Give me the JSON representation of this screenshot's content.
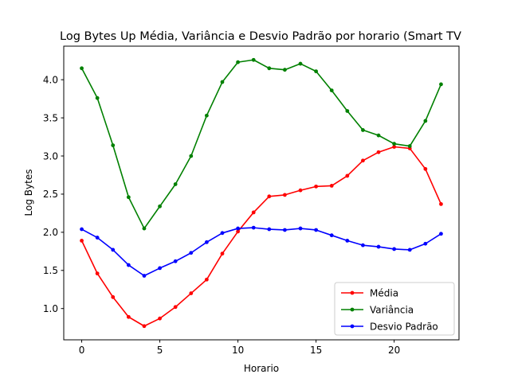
{
  "chart_data": {
    "type": "line",
    "title": "Log Bytes Up Média, Variância e Desvio Padrão por horario (Smart TV",
    "xlabel": "Horario",
    "ylabel": "Log Bytes",
    "x": [
      0,
      1,
      2,
      3,
      4,
      5,
      6,
      7,
      8,
      9,
      10,
      11,
      12,
      13,
      14,
      15,
      16,
      17,
      18,
      19,
      20,
      21,
      22,
      23
    ],
    "xlim": [
      -1.15,
      24.15
    ],
    "ylim": [
      0.59,
      4.44
    ],
    "xticks": [
      0,
      5,
      10,
      15,
      20
    ],
    "xtick_labels": [
      "0",
      "5",
      "10",
      "15",
      "20"
    ],
    "yticks": [
      1.0,
      1.5,
      2.0,
      2.5,
      3.0,
      3.5,
      4.0
    ],
    "ytick_labels": [
      "1.0",
      "1.5",
      "2.0",
      "2.5",
      "3.0",
      "3.5",
      "4.0"
    ],
    "grid": false,
    "legend_position": "lower-right",
    "series": [
      {
        "name": "Média",
        "color": "#ff0000",
        "values": [
          1.89,
          1.46,
          1.15,
          0.89,
          0.77,
          0.87,
          1.02,
          1.2,
          1.38,
          1.72,
          2.01,
          2.26,
          2.47,
          2.49,
          2.55,
          2.6,
          2.61,
          2.74,
          2.94,
          3.05,
          3.12,
          3.1,
          2.83,
          2.37
        ]
      },
      {
        "name": "Variância",
        "color": "#008000",
        "values": [
          4.15,
          3.76,
          3.14,
          2.46,
          2.05,
          2.34,
          2.63,
          3.0,
          3.53,
          3.97,
          4.23,
          4.26,
          4.15,
          4.13,
          4.21,
          4.11,
          3.86,
          3.59,
          3.34,
          3.27,
          3.16,
          3.13,
          3.46,
          3.94
        ]
      },
      {
        "name": "Desvio Padrão",
        "color": "#0000ff",
        "values": [
          2.04,
          1.93,
          1.77,
          1.57,
          1.43,
          1.53,
          1.62,
          1.73,
          1.87,
          1.99,
          2.05,
          2.06,
          2.04,
          2.03,
          2.05,
          2.03,
          1.96,
          1.89,
          1.83,
          1.81,
          1.78,
          1.77,
          1.85,
          1.98
        ]
      }
    ]
  }
}
